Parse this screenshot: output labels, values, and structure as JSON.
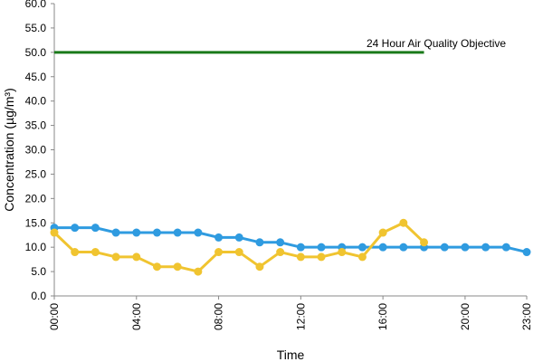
{
  "chart_data": {
    "type": "line",
    "xlabel": "Time",
    "ylabel": "Concentration (µg/m³)",
    "ylim": [
      0,
      60
    ],
    "y_ticks": [
      "0.0",
      "5.0",
      "10.0",
      "15.0",
      "20.0",
      "25.0",
      "30.0",
      "35.0",
      "40.0",
      "45.0",
      "50.0",
      "55.0",
      "60.0"
    ],
    "x_range": [
      0,
      23
    ],
    "x_tick_hours": [
      0,
      4,
      8,
      12,
      16,
      20,
      23
    ],
    "x_ticks": [
      "00:00",
      "04:00",
      "08:00",
      "12:00",
      "16:00",
      "20:00",
      "23:00"
    ],
    "grid": false,
    "objective": {
      "label": "24 Hour Air Quality Objective",
      "value": 50,
      "x_start": 0,
      "x_end": 18,
      "color": "#1a7a1a"
    },
    "series": [
      {
        "color": "#2f9be0",
        "x": [
          0,
          1,
          2,
          3,
          4,
          5,
          6,
          7,
          8,
          9,
          10,
          11,
          12,
          13,
          14,
          15,
          16,
          17,
          18,
          19,
          20,
          21,
          22,
          23
        ],
        "values": [
          14,
          14,
          14,
          13,
          13,
          13,
          13,
          13,
          12,
          12,
          11,
          11,
          10,
          10,
          10,
          10,
          10,
          10,
          10,
          10,
          10,
          10,
          10,
          9
        ]
      },
      {
        "color": "#f0c430",
        "x": [
          0,
          1,
          2,
          3,
          4,
          5,
          6,
          7,
          8,
          9,
          10,
          11,
          12,
          13,
          14,
          15,
          16,
          17,
          18
        ],
        "values": [
          13,
          9,
          9,
          8,
          8,
          6,
          6,
          5,
          9,
          9,
          6,
          9,
          8,
          8,
          9,
          8,
          13,
          15,
          11
        ]
      }
    ]
  }
}
